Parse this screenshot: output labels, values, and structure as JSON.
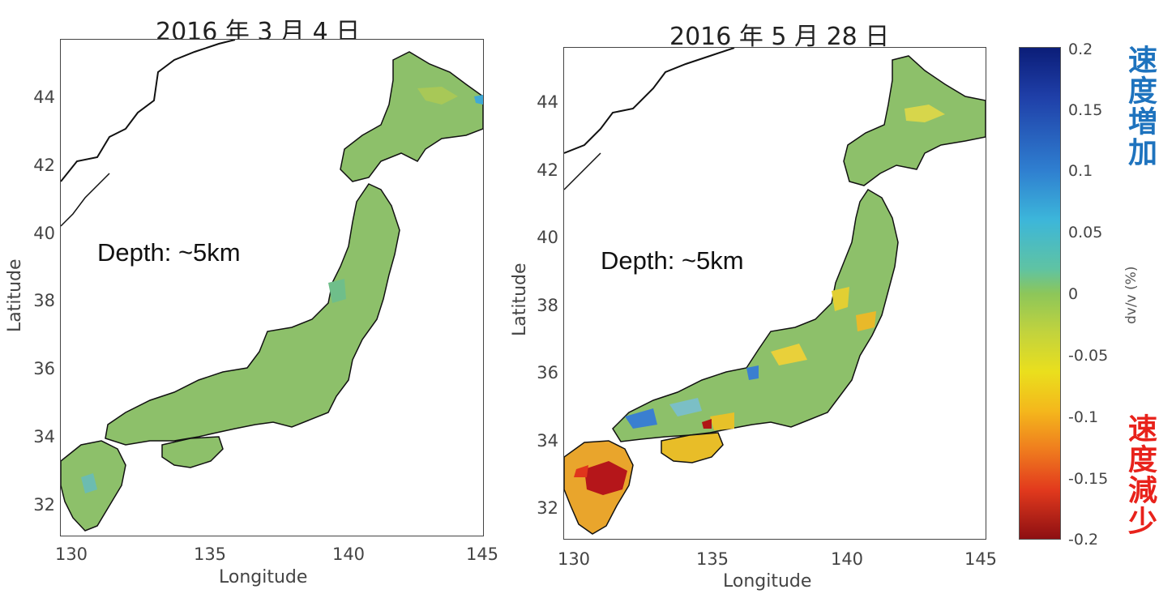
{
  "panels": [
    {
      "title": "2016 年 3 月 4 日",
      "annotation": "Depth: ~5km",
      "xlabel": "Longitude",
      "ylabel": "Latitude",
      "xticks": [
        "130",
        "135",
        "140",
        "145"
      ],
      "yticks": [
        "44",
        "42",
        "40",
        "38",
        "36",
        "34",
        "32"
      ]
    },
    {
      "title": "2016 年 5 月 28 日",
      "annotation": "Depth: ~5km",
      "xlabel": "Longitude",
      "ylabel": "Latitude",
      "xticks": [
        "130",
        "135",
        "140",
        "145"
      ],
      "yticks": [
        "44",
        "42",
        "40",
        "38",
        "36",
        "34",
        "32"
      ]
    }
  ],
  "colorbar": {
    "label": "dv/v (%)",
    "ticks": [
      "0.2",
      "0.15",
      "0.1",
      "0.05",
      "0",
      "-0.05",
      "-0.1",
      "-0.15",
      "-0.2"
    ],
    "range": [
      -0.2,
      0.2
    ],
    "increase_label": "速度増加",
    "decrease_label": "速度減少",
    "increase_color": "#1e73be",
    "decrease_color": "#e8221b"
  },
  "colors": {
    "land_base": "#8dc06a",
    "anomaly_low": "#b01515",
    "anomaly_high": "#3a7fd0"
  }
}
